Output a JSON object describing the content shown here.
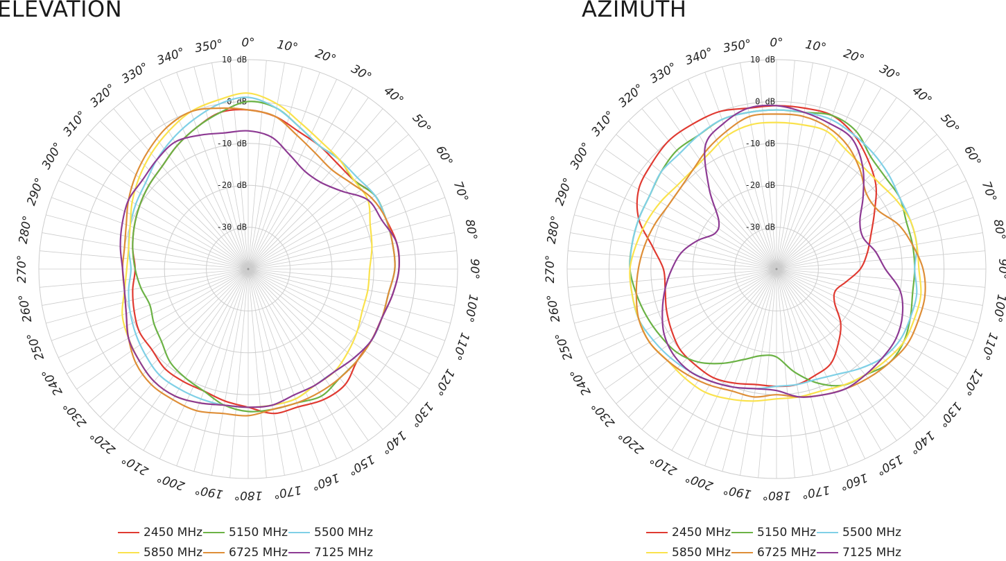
{
  "titles": {
    "left": "ELEVATION",
    "right": "AZIMUTH"
  },
  "chart_data": [
    {
      "type": "polar-line",
      "title": "ELEVATION",
      "radial_axis": {
        "min": -40,
        "max": 10,
        "ticks": [
          10,
          0,
          -10,
          -20,
          -30
        ],
        "tick_labels": [
          "10 dB",
          "0 dB",
          "-10 dB",
          "-20 dB",
          "-30 dB"
        ]
      },
      "angle_axis": {
        "direction": "clockwise",
        "zero": "top",
        "tick_labels": [
          "0°",
          "10°",
          "20°",
          "30°",
          "40°",
          "50°",
          "60°",
          "70°",
          "80°",
          "90°",
          "100°",
          "110°",
          "120°",
          "130°",
          "140°",
          "150°",
          "160°",
          "170°",
          "180°",
          "190°",
          "200°",
          "210°",
          "220°",
          "230°",
          "240°",
          "250°",
          "260°",
          "270°",
          "280°",
          "290°",
          "300°",
          "310°",
          "320°",
          "330°",
          "340°",
          "350°"
        ]
      },
      "angles": [
        0,
        10,
        20,
        30,
        40,
        50,
        60,
        70,
        80,
        90,
        100,
        110,
        120,
        130,
        140,
        150,
        160,
        170,
        180,
        190,
        200,
        210,
        220,
        230,
        240,
        250,
        260,
        270,
        280,
        290,
        300,
        310,
        320,
        330,
        340,
        350
      ],
      "series": [
        {
          "name": "2450 MHz",
          "color": "#e03a31",
          "values": [
            -2,
            -3,
            -5,
            -6,
            -7,
            -7,
            -5,
            -5,
            -4,
            -4,
            -5,
            -6,
            -6,
            -6,
            -4,
            -4,
            -5,
            -5,
            -7,
            -8,
            -9,
            -9,
            -9,
            -10,
            -10,
            -11,
            -12,
            -13,
            -12,
            -11,
            -10,
            -9,
            -8,
            -6,
            -4,
            -2
          ]
        },
        {
          "name": "5150 MHz",
          "color": "#6bb245",
          "values": [
            0,
            -1,
            -4,
            -6,
            -6,
            -7,
            -5,
            -5,
            -5,
            -5,
            -6,
            -6,
            -6,
            -6,
            -6,
            -5,
            -6,
            -6,
            -6,
            -7,
            -9,
            -10,
            -11,
            -13,
            -14,
            -15,
            -14,
            -13,
            -12,
            -11,
            -10,
            -9,
            -8,
            -6,
            -4,
            -2
          ]
        },
        {
          "name": "5500 MHz",
          "color": "#7fd0e6",
          "values": [
            1,
            -1,
            -4,
            -6,
            -6,
            -6,
            -5,
            -5,
            -5,
            -5,
            -6,
            -6,
            -6,
            -7,
            -8,
            -8,
            -7,
            -7,
            -7,
            -7,
            -7,
            -7,
            -7,
            -8,
            -9,
            -10,
            -11,
            -12,
            -11,
            -10,
            -9,
            -8,
            -6,
            -4,
            -2,
            0
          ]
        },
        {
          "name": "5850 MHz",
          "color": "#fae24c",
          "values": [
            2,
            0,
            -3,
            -5,
            -6,
            -7,
            -7,
            -9,
            -10,
            -11,
            -11,
            -11,
            -10,
            -9,
            -8,
            -8,
            -7,
            -7,
            -7,
            -7,
            -6,
            -5,
            -5,
            -6,
            -7,
            -8,
            -10,
            -11,
            -11,
            -10,
            -8,
            -6,
            -4,
            -2,
            0,
            1
          ]
        },
        {
          "name": "6725 MHz",
          "color": "#de8e37",
          "values": [
            -2,
            -3,
            -6,
            -8,
            -9,
            -8,
            -6,
            -5,
            -5,
            -5,
            -6,
            -6,
            -6,
            -6,
            -6,
            -6,
            -6,
            -6,
            -5,
            -5,
            -4,
            -4,
            -4,
            -5,
            -7,
            -9,
            -10,
            -10,
            -10,
            -9,
            -7,
            -5,
            -3,
            -1,
            0,
            -1
          ]
        },
        {
          "name": "7125 MHz",
          "color": "#8d3a93",
          "values": [
            -7,
            -8,
            -11,
            -13,
            -13,
            -11,
            -7,
            -6,
            -4,
            -4,
            -5,
            -6,
            -6,
            -7,
            -8,
            -8,
            -8,
            -7,
            -7,
            -7,
            -6,
            -5,
            -5,
            -6,
            -7,
            -9,
            -10,
            -10,
            -9,
            -8,
            -7,
            -7,
            -6,
            -5,
            -6,
            -7
          ]
        }
      ]
    },
    {
      "type": "polar-line",
      "title": "AZIMUTH",
      "radial_axis": {
        "min": -40,
        "max": 10,
        "ticks": [
          10,
          0,
          -10,
          -20,
          -30
        ],
        "tick_labels": [
          "10 dB",
          "0 dB",
          "-10 dB",
          "-20 dB",
          "-30 dB"
        ]
      },
      "angle_axis": {
        "direction": "clockwise",
        "zero": "top",
        "tick_labels": [
          "0°",
          "10°",
          "20°",
          "30°",
          "40°",
          "50°",
          "60°",
          "70°",
          "80°",
          "90°",
          "100°",
          "110°",
          "120°",
          "130°",
          "140°",
          "150°",
          "160°",
          "170°",
          "180°",
          "190°",
          "200°",
          "210°",
          "220°",
          "230°",
          "240°",
          "250°",
          "260°",
          "270°",
          "280°",
          "290°",
          "300°",
          "310°",
          "320°",
          "330°",
          "340°",
          "350°"
        ]
      },
      "angles": [
        0,
        10,
        20,
        30,
        40,
        50,
        60,
        70,
        80,
        90,
        100,
        110,
        120,
        130,
        140,
        150,
        160,
        170,
        180,
        190,
        200,
        210,
        220,
        230,
        240,
        250,
        260,
        270,
        280,
        290,
        300,
        310,
        320,
        330,
        340,
        350
      ],
      "series": [
        {
          "name": "2450 MHz",
          "color": "#e03a31",
          "values": [
            -1,
            -1,
            -1,
            -3,
            -6,
            -9,
            -13,
            -16,
            -18,
            -20,
            -23,
            -25,
            -24,
            -20,
            -17,
            -14,
            -13,
            -12,
            -12,
            -12,
            -11,
            -10,
            -10,
            -10,
            -11,
            -12,
            -13,
            -13,
            -10,
            -5,
            -2,
            -1,
            0,
            0,
            0,
            -1
          ]
        },
        {
          "name": "5150 MHz",
          "color": "#6bb245",
          "values": [
            -2,
            -2,
            -1,
            -2,
            -5,
            -6,
            -6,
            -7,
            -7,
            -7,
            -7,
            -6,
            -5,
            -5,
            -7,
            -8,
            -11,
            -15,
            -19,
            -19,
            -17,
            -14,
            -11,
            -9,
            -8,
            -7,
            -6,
            -5,
            -5,
            -5,
            -5,
            -4,
            -3,
            -3,
            -2,
            -2
          ]
        },
        {
          "name": "5500 MHz",
          "color": "#7fd0e6",
          "values": [
            -2,
            -2,
            -2,
            -3,
            -4,
            -5,
            -6,
            -6,
            -6,
            -7,
            -6,
            -6,
            -6,
            -7,
            -9,
            -11,
            -12,
            -12,
            -12,
            -11,
            -10,
            -9,
            -8,
            -7,
            -6,
            -5,
            -5,
            -5,
            -5,
            -5,
            -5,
            -4,
            -4,
            -3,
            -2,
            -2
          ]
        },
        {
          "name": "5850 MHz",
          "color": "#fae24c",
          "values": [
            -5,
            -5,
            -5,
            -7,
            -8,
            -8,
            -7,
            -6,
            -6,
            -6,
            -5,
            -5,
            -5,
            -6,
            -7,
            -8,
            -9,
            -9,
            -9,
            -8,
            -7,
            -6,
            -6,
            -6,
            -5,
            -5,
            -5,
            -5,
            -6,
            -7,
            -8,
            -9,
            -9,
            -8,
            -6,
            -5
          ]
        },
        {
          "name": "6725 MHz",
          "color": "#de8e37",
          "values": [
            -3,
            -3,
            -4,
            -6,
            -9,
            -12,
            -12,
            -9,
            -7,
            -5,
            -4,
            -4,
            -4,
            -5,
            -6,
            -7,
            -8,
            -9,
            -10,
            -9,
            -9,
            -8,
            -7,
            -6,
            -5,
            -5,
            -6,
            -7,
            -8,
            -9,
            -10,
            -10,
            -9,
            -7,
            -5,
            -3
          ]
        },
        {
          "name": "7125 MHz",
          "color": "#8d3a93",
          "values": [
            -1,
            -2,
            -3,
            -4,
            -8,
            -13,
            -17,
            -18,
            -16,
            -14,
            -10,
            -8,
            -7,
            -7,
            -7,
            -7,
            -8,
            -9,
            -11,
            -11,
            -10,
            -9,
            -8,
            -8,
            -9,
            -11,
            -13,
            -15,
            -17,
            -20,
            -23,
            -22,
            -15,
            -6,
            -3,
            -1
          ]
        }
      ]
    }
  ]
}
